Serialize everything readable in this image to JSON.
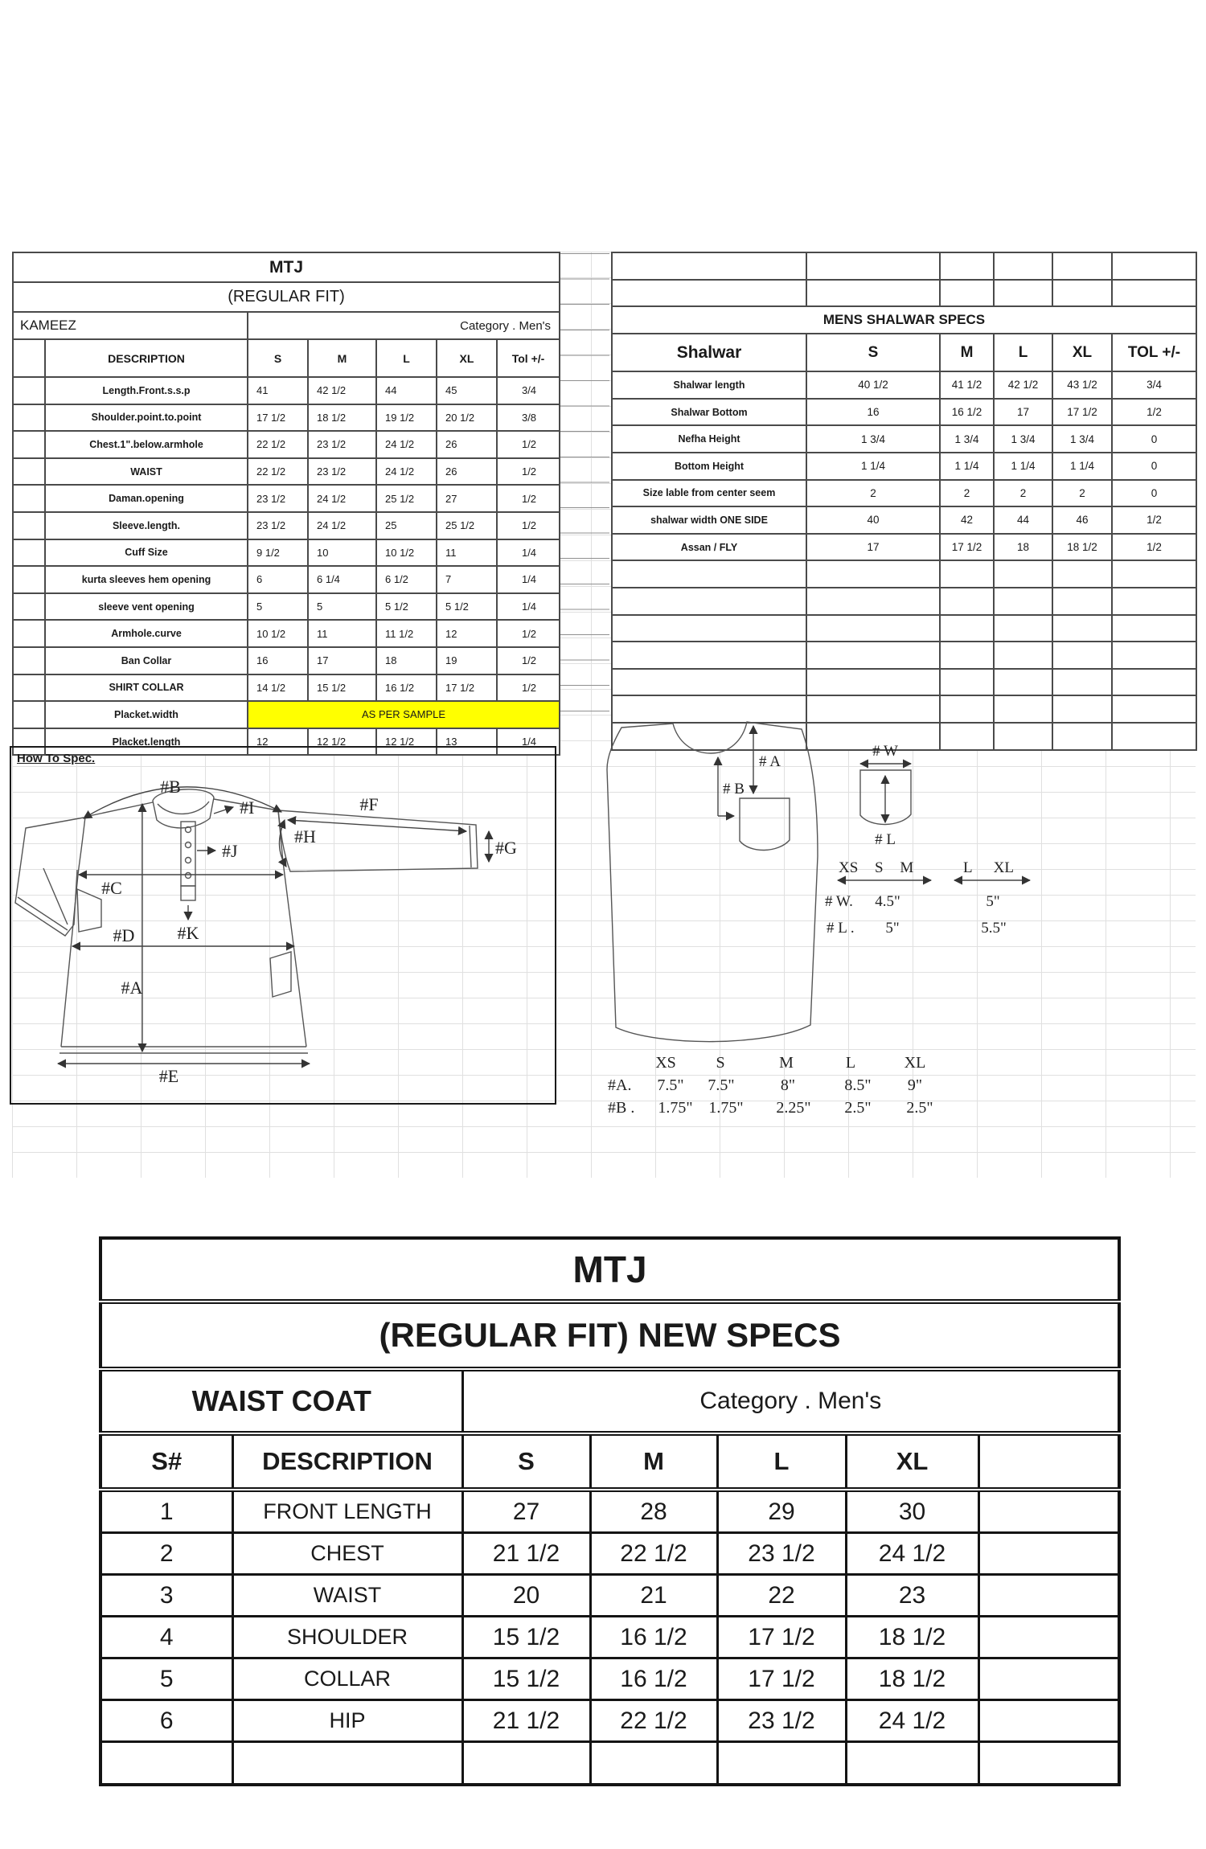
{
  "kameez_table": {
    "title": "MTJ",
    "subtitle": "(REGULAR FIT)",
    "name": "KAMEEZ",
    "category_label": "Category .  Men's",
    "headers": [
      "DESCRIPTION",
      "S",
      "M",
      "L",
      "XL",
      "Tol +/-"
    ],
    "rows": [
      [
        "",
        "Length.Front.s.s.p",
        "41",
        "42 1/2",
        "44",
        "45",
        "3/4"
      ],
      [
        "",
        "Shoulder.point.to.point",
        "17 1/2",
        "18 1/2",
        "19 1/2",
        "20 1/2",
        "3/8"
      ],
      [
        "",
        "Chest.1\".below.armhole",
        "22 1/2",
        "23 1/2",
        "24 1/2",
        "26",
        "1/2"
      ],
      [
        "",
        "WAIST",
        "22 1/2",
        "23 1/2",
        "24 1/2",
        "26",
        "1/2"
      ],
      [
        "",
        "Daman.opening",
        "23 1/2",
        "24 1/2",
        "25 1/2",
        "27",
        "1/2"
      ],
      [
        "",
        "Sleeve.length.",
        "23 1/2",
        "24 1/2",
        "25",
        "25 1/2",
        "1/2"
      ],
      [
        "",
        "Cuff Size",
        "9 1/2",
        "10",
        "10 1/2",
        "11",
        "1/4"
      ],
      [
        "",
        "kurta sleeves hem opening",
        "6",
        "6 1/4",
        "6 1/2",
        "7",
        "1/4"
      ],
      [
        "",
        "sleeve vent opening",
        "5",
        "5",
        "5 1/2",
        "5 1/2",
        "1/4"
      ],
      [
        "",
        "Armhole.curve",
        "10 1/2",
        "11",
        "11 1/2",
        "12",
        "1/2"
      ],
      [
        "",
        "Ban Collar",
        "16",
        "17",
        "18",
        "19",
        "1/2"
      ],
      [
        "",
        "SHIRT COLLAR",
        "14 1/2",
        "15 1/2",
        "16 1/2",
        "17 1/2",
        "1/2"
      ],
      [
        "",
        "Placket.width",
        {
          "t": "AS PER SAMPLE",
          "span": 5,
          "cls": "hl"
        }
      ],
      [
        "",
        "Placket.length",
        "12",
        "12 1/2",
        "12 1/2",
        "13",
        "1/4"
      ]
    ]
  },
  "shalwar_table": {
    "title": "MENS SHALWAR SPECS",
    "headers": [
      "Shalwar",
      "S",
      "M",
      "L",
      "XL",
      "TOL +/-"
    ],
    "top_rows": [
      [
        "",
        "",
        "",
        "",
        "",
        ""
      ],
      [
        "",
        "",
        "",
        "",
        "",
        ""
      ]
    ],
    "rows": [
      [
        "Shalwar length",
        "40 1/2",
        "41 1/2",
        "42 1/2",
        "43 1/2",
        "3/4"
      ],
      [
        "Shalwar Bottom",
        "16",
        "16 1/2",
        "17",
        "17 1/2",
        "1/2"
      ],
      [
        "Nefha Height",
        "1 3/4",
        "1 3/4",
        "1 3/4",
        "1 3/4",
        "0"
      ],
      [
        "Bottom Height",
        "1 1/4",
        "1 1/4",
        "1 1/4",
        "1 1/4",
        "0"
      ],
      [
        "Size lable from center seem",
        "2",
        "2",
        "2",
        "2",
        "0"
      ],
      [
        "shalwar width ONE SIDE",
        "40",
        "42",
        "44",
        "46",
        "1/2"
      ],
      [
        "Assan / FLY",
        "17",
        "17 1/2",
        "18",
        "18 1/2",
        "1/2"
      ]
    ],
    "blank_rows": [
      [
        "",
        "",
        "",
        "",
        "",
        ""
      ],
      [
        "",
        "",
        "",
        "",
        "",
        ""
      ],
      [
        "",
        "",
        "",
        "",
        "",
        ""
      ],
      [
        "",
        "",
        "",
        "",
        "",
        ""
      ],
      [
        "",
        "",
        "",
        "",
        "",
        ""
      ],
      [
        "",
        "",
        "",
        "",
        "",
        ""
      ],
      [
        "",
        "",
        "",
        "",
        "",
        ""
      ]
    ]
  },
  "how_to_spec": {
    "label": "How To Spec. ",
    "labels": {
      "a": "#A",
      "b": "#B",
      "c": "#C",
      "d": "#D",
      "e": "#E",
      "f": "#F",
      "g": "#G",
      "h": "#H",
      "i": "#I",
      "j": "#J",
      "k": "#K"
    }
  },
  "vest": {
    "labels": {
      "a": "# A",
      "b": "# B",
      "w": "# W",
      "l": "# L",
      "sizes_small": "XS S M",
      "sizes_large": "L XL",
      "w_row_label": "# W.",
      "w_small": "4.5\"",
      "w_large": "5\"",
      "l_row_label": "# L .",
      "l_small": "5\"",
      "l_large": "5.5\""
    },
    "table": {
      "sizes": [
        "XS",
        "S",
        "M",
        "L",
        "XL"
      ],
      "a_label": "#A.",
      "a": [
        "7.5\"",
        "7.5\"",
        "8\"",
        "8.5\"",
        "9\""
      ],
      "b_label": "#B .",
      "b": [
        "1.75\"",
        "1.75\"",
        "2.25\"",
        "2.5\"",
        "2.5\""
      ]
    }
  },
  "waistcoat_table": {
    "title": "MTJ",
    "subtitle": "(REGULAR FIT)  NEW SPECS",
    "name": "WAIST COAT",
    "category_label": "Category .  Men's",
    "headers": [
      "S#",
      "DESCRIPTION",
      "S",
      "M",
      "L",
      "XL",
      ""
    ],
    "rows": [
      [
        "1",
        "FRONT LENGTH",
        "27",
        "28",
        "29",
        "30",
        ""
      ],
      [
        "2",
        "CHEST",
        "21 1/2",
        "22 1/2",
        "23 1/2",
        "24 1/2",
        ""
      ],
      [
        "3",
        "WAIST",
        "20",
        "21",
        "22",
        "23",
        ""
      ],
      [
        "4",
        "SHOULDER",
        "15 1/2",
        "16 1/2",
        "17 1/2",
        "18 1/2",
        ""
      ],
      [
        "5",
        "COLLAR",
        "15 1/2",
        "16 1/2",
        "17 1/2",
        "18 1/2",
        ""
      ],
      [
        "6",
        "HIP",
        "21 1/2",
        "22 1/2",
        "23 1/2",
        "24 1/2",
        ""
      ],
      [
        "",
        "",
        "",
        "",
        "",
        "",
        ""
      ]
    ]
  }
}
